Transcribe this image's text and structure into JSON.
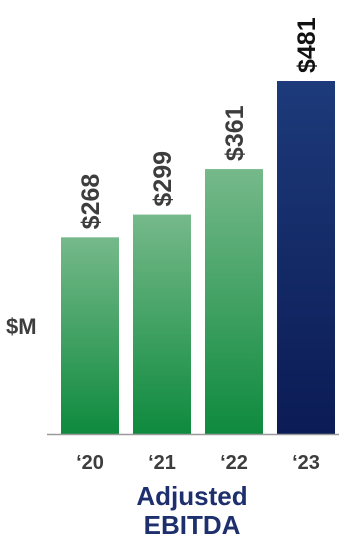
{
  "chart_data": {
    "type": "bar",
    "categories": [
      "‘20",
      "‘21",
      "‘22",
      "‘23"
    ],
    "values": [
      268,
      299,
      361,
      481
    ],
    "value_labels": [
      "$268",
      "$299",
      "$361",
      "$481"
    ],
    "title_lines": [
      "Adjusted",
      "EBITDA"
    ],
    "ylabel": "$M",
    "xlabel": "",
    "ylim": [
      0,
      481
    ],
    "grid": false,
    "legend": "none",
    "colors": {
      "green_top": "#76b98a",
      "green_bottom": "#0e8a3e",
      "navy_top": "#1d3a7a",
      "navy_bottom": "#0b1b55",
      "label": "#3d3d3d",
      "title": "#1e2f6e",
      "axis": "#9a9a9a"
    }
  }
}
